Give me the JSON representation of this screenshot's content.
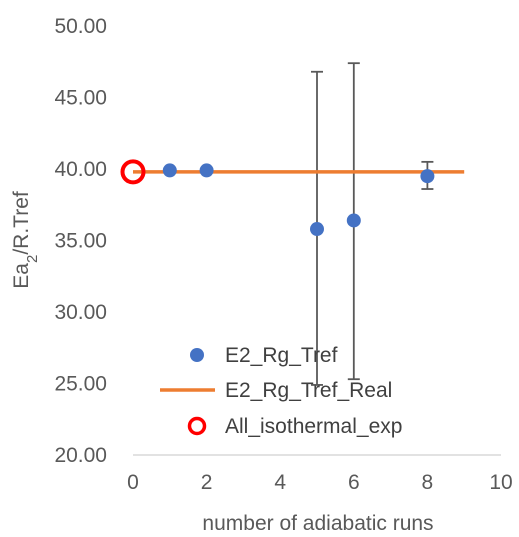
{
  "chart_data": {
    "type": "scatter",
    "title": "",
    "xlabel": "number of adiabatic runs",
    "ylabel": {
      "main": "Ea",
      "sub": "2",
      "rest": "/R.Tref"
    },
    "xlim": [
      0,
      10
    ],
    "ylim": [
      20,
      50
    ],
    "x_ticks": [
      0,
      2,
      4,
      6,
      8,
      10
    ],
    "y_ticks": [
      20,
      25,
      30,
      35,
      40,
      45,
      50
    ],
    "x_tick_labels": [
      "0",
      "2",
      "4",
      "6",
      "8",
      "10"
    ],
    "y_tick_labels": [
      "20.00",
      "25.00",
      "30.00",
      "35.00",
      "40.00",
      "45.00",
      "50.00"
    ],
    "grid": false,
    "legend_position": "bottom-left inside plot",
    "series": [
      {
        "name": "E2_Rg_Tref",
        "kind": "scatter",
        "color": "#4472C4",
        "points": [
          {
            "x": 1,
            "y": 39.9
          },
          {
            "x": 2,
            "y": 39.9
          },
          {
            "x": 5,
            "y": 35.8,
            "err_low": 24.9,
            "err_high": 46.8
          },
          {
            "x": 6,
            "y": 36.4,
            "err_low": 25.3,
            "err_high": 47.4
          },
          {
            "x": 8,
            "y": 39.5,
            "err_low": 38.6,
            "err_high": 40.5
          }
        ]
      },
      {
        "name": "E2_Rg_Tref_Real",
        "kind": "line",
        "color": "#ED7D31",
        "points": [
          {
            "x": 0,
            "y": 39.8
          },
          {
            "x": 9,
            "y": 39.8
          }
        ]
      },
      {
        "name": "All_isothermal_exp",
        "kind": "open-circle",
        "color": "#FF0000",
        "points": [
          {
            "x": 0,
            "y": 39.8
          }
        ]
      }
    ]
  }
}
